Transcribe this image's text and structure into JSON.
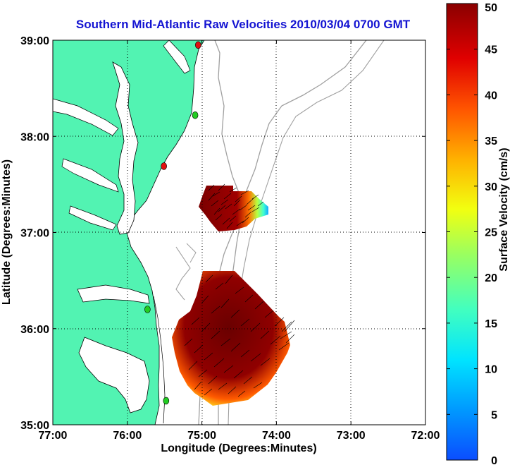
{
  "chart_data": {
    "type": "heatmap",
    "title": "Southern Mid-Atlantic Raw Velocities 2010/03/04 0700 GMT",
    "xlabel": "Longitude (Degrees:Minutes)",
    "ylabel": "Latitude (Degrees:Minutes)",
    "xlim": [
      -77,
      -72
    ],
    "ylim": [
      35,
      39
    ],
    "x_ticks": [
      "77:00",
      "76:00",
      "75:00",
      "74:00",
      "73:00",
      "72:00"
    ],
    "y_ticks": [
      "35:00",
      "36:00",
      "37:00",
      "38:00",
      "39:00"
    ],
    "grid": true,
    "colorbar": {
      "label": "Surface Velocity (cm/s)",
      "range": [
        0,
        50
      ],
      "ticks": [
        "0",
        "5",
        "10",
        "15",
        "20",
        "25",
        "30",
        "35",
        "40",
        "45",
        "50"
      ],
      "colormap": "jet"
    },
    "stations": [
      {
        "lon": -75.05,
        "lat": 38.95,
        "color": "#e01010"
      },
      {
        "lon": -75.09,
        "lat": 38.22,
        "color": "#22cc22"
      },
      {
        "lon": -75.51,
        "lat": 37.69,
        "color": "#e01010"
      },
      {
        "lon": -75.73,
        "lat": 36.2,
        "color": "#22cc22"
      },
      {
        "lon": -75.48,
        "lat": 35.25,
        "color": "#22cc22"
      }
    ],
    "regions": [
      {
        "name": "",
        "outline": [
          [
            -75.11,
            37.47
          ],
          [
            -74.78,
            37.47
          ],
          [
            -74.78,
            37.4
          ],
          [
            -74.55,
            37.4
          ],
          [
            -74.45,
            37.3
          ],
          [
            -74.33,
            37.2
          ],
          [
            -74.33,
            37.1
          ],
          [
            -74.5,
            37.05
          ],
          [
            -74.6,
            36.95
          ],
          [
            -74.75,
            36.9
          ],
          [
            -74.95,
            36.88
          ],
          [
            -75.05,
            37.0
          ],
          [
            -75.12,
            37.1
          ],
          [
            -75.2,
            37.2
          ],
          [
            -75.15,
            37.35
          ]
        ],
        "speed_range_cm_s": [
          10,
          50
        ]
      },
      {
        "name": "",
        "outline": [
          [
            -75.11,
            36.6
          ],
          [
            -74.7,
            36.6
          ],
          [
            -74.4,
            36.32
          ],
          [
            -74.35,
            36.25
          ],
          [
            -74.22,
            35.9
          ],
          [
            -74.25,
            35.8
          ],
          [
            -74.4,
            35.55
          ],
          [
            -74.5,
            35.4
          ],
          [
            -74.75,
            35.2
          ],
          [
            -75.2,
            35.15
          ],
          [
            -75.3,
            35.2
          ],
          [
            -75.35,
            35.25
          ],
          [
            -75.45,
            35.4
          ],
          [
            -75.5,
            35.6
          ],
          [
            -75.55,
            35.8
          ],
          [
            -75.5,
            36.1
          ],
          [
            -75.35,
            36.2
          ],
          [
            -75.25,
            36.4
          ]
        ],
        "speed_range_cm_s": [
          15,
          50
        ]
      }
    ]
  }
}
